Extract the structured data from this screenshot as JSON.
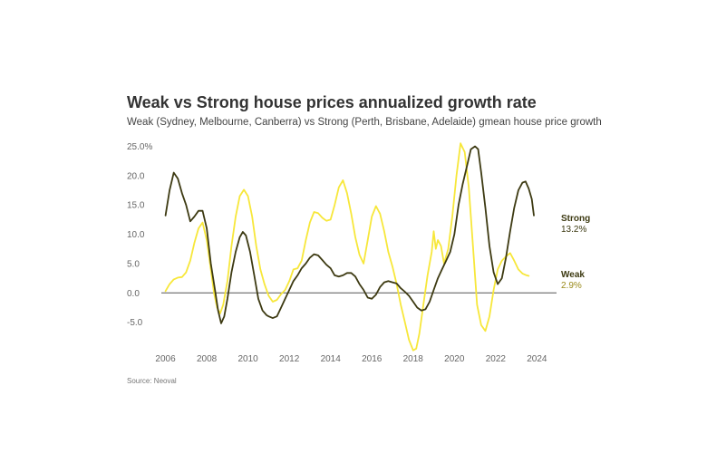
{
  "chart_data": {
    "type": "line",
    "title": "Weak vs Strong house prices annualized growth rate",
    "subtitle": "Weak (Sydney, Melbourne, Canberra) vs Strong (Perth, Brisbane, Adelaide) gmean house price growth",
    "source": "Source: Neoval",
    "xlabel": "",
    "ylabel": "",
    "xlim": [
      2005.8,
      2024.95
    ],
    "ylim": [
      -10,
      26
    ],
    "x_ticks": [
      2006,
      2008,
      2010,
      2012,
      2014,
      2016,
      2018,
      2020,
      2022,
      2024
    ],
    "x_tick_labels": [
      "2006",
      "2008",
      "2010",
      "2012",
      "2014",
      "2016",
      "2018",
      "2020",
      "2022",
      "2024"
    ],
    "y_ticks": [
      25,
      20,
      15,
      10,
      5,
      0,
      -5
    ],
    "y_tick_labels": [
      "25.0%",
      "20.0",
      "15.0",
      "10.0",
      "5.0",
      "0.0",
      "-5.0"
    ],
    "grid": false,
    "zero_line": true,
    "legend": "end-of-line labels",
    "colors": {
      "strong": "#3d3a12",
      "weak": "#f7e73a",
      "weak_label": "#9a8a1a",
      "zero_line": "#555555"
    },
    "series": [
      {
        "name": "Strong",
        "end_label": "13.2%",
        "points": [
          [
            2006.0,
            13.2
          ],
          [
            2006.2,
            17.5
          ],
          [
            2006.4,
            20.5
          ],
          [
            2006.6,
            19.5
          ],
          [
            2006.8,
            17.0
          ],
          [
            2007.0,
            15.0
          ],
          [
            2007.2,
            12.2
          ],
          [
            2007.4,
            13.0
          ],
          [
            2007.6,
            14.0
          ],
          [
            2007.8,
            14.0
          ],
          [
            2008.0,
            11.0
          ],
          [
            2008.2,
            5.0
          ],
          [
            2008.4,
            0.5
          ],
          [
            2008.55,
            -3.0
          ],
          [
            2008.7,
            -5.2
          ],
          [
            2008.85,
            -4.0
          ],
          [
            2009.0,
            -1.0
          ],
          [
            2009.2,
            3.5
          ],
          [
            2009.4,
            7.0
          ],
          [
            2009.6,
            9.5
          ],
          [
            2009.75,
            10.4
          ],
          [
            2009.9,
            9.8
          ],
          [
            2010.1,
            7.0
          ],
          [
            2010.3,
            3.0
          ],
          [
            2010.5,
            -1.0
          ],
          [
            2010.7,
            -3.0
          ],
          [
            2010.9,
            -3.8
          ],
          [
            2011.0,
            -4.0
          ],
          [
            2011.2,
            -4.3
          ],
          [
            2011.4,
            -4.0
          ],
          [
            2011.6,
            -2.5
          ],
          [
            2011.8,
            -1.0
          ],
          [
            2012.0,
            0.5
          ],
          [
            2012.2,
            2.0
          ],
          [
            2012.4,
            3.0
          ],
          [
            2012.6,
            4.2
          ],
          [
            2012.8,
            5.0
          ],
          [
            2013.0,
            6.0
          ],
          [
            2013.2,
            6.6
          ],
          [
            2013.4,
            6.4
          ],
          [
            2013.6,
            5.6
          ],
          [
            2013.8,
            4.8
          ],
          [
            2014.0,
            4.2
          ],
          [
            2014.2,
            3.0
          ],
          [
            2014.4,
            2.8
          ],
          [
            2014.6,
            3.0
          ],
          [
            2014.8,
            3.4
          ],
          [
            2015.0,
            3.4
          ],
          [
            2015.2,
            2.8
          ],
          [
            2015.4,
            1.5
          ],
          [
            2015.6,
            0.5
          ],
          [
            2015.8,
            -0.8
          ],
          [
            2016.0,
            -1.0
          ],
          [
            2016.2,
            -0.3
          ],
          [
            2016.4,
            1.0
          ],
          [
            2016.6,
            1.8
          ],
          [
            2016.8,
            2.0
          ],
          [
            2017.0,
            1.8
          ],
          [
            2017.2,
            1.6
          ],
          [
            2017.4,
            0.8
          ],
          [
            2017.6,
            0.2
          ],
          [
            2017.8,
            -0.5
          ],
          [
            2018.0,
            -1.5
          ],
          [
            2018.2,
            -2.5
          ],
          [
            2018.4,
            -3.0
          ],
          [
            2018.6,
            -2.8
          ],
          [
            2018.8,
            -1.5
          ],
          [
            2019.0,
            0.5
          ],
          [
            2019.2,
            2.5
          ],
          [
            2019.4,
            4.0
          ],
          [
            2019.6,
            5.5
          ],
          [
            2019.8,
            7.0
          ],
          [
            2020.0,
            10.0
          ],
          [
            2020.2,
            15.0
          ],
          [
            2020.4,
            18.5
          ],
          [
            2020.6,
            21.5
          ],
          [
            2020.8,
            24.5
          ],
          [
            2021.0,
            25.0
          ],
          [
            2021.15,
            24.5
          ],
          [
            2021.3,
            20.5
          ],
          [
            2021.5,
            14.5
          ],
          [
            2021.7,
            8.0
          ],
          [
            2021.9,
            3.5
          ],
          [
            2022.1,
            1.5
          ],
          [
            2022.3,
            2.5
          ],
          [
            2022.5,
            6.0
          ],
          [
            2022.7,
            10.5
          ],
          [
            2022.9,
            14.5
          ],
          [
            2023.1,
            17.5
          ],
          [
            2023.3,
            18.8
          ],
          [
            2023.45,
            19.0
          ],
          [
            2023.6,
            17.8
          ],
          [
            2023.75,
            16.0
          ],
          [
            2023.85,
            13.2
          ]
        ]
      },
      {
        "name": "Weak",
        "end_label": "2.9%",
        "points": [
          [
            2006.0,
            0.3
          ],
          [
            2006.2,
            1.5
          ],
          [
            2006.4,
            2.3
          ],
          [
            2006.6,
            2.6
          ],
          [
            2006.8,
            2.7
          ],
          [
            2007.0,
            3.5
          ],
          [
            2007.2,
            5.5
          ],
          [
            2007.4,
            8.5
          ],
          [
            2007.6,
            11.0
          ],
          [
            2007.8,
            12.0
          ],
          [
            2008.0,
            9.0
          ],
          [
            2008.2,
            4.0
          ],
          [
            2008.35,
            0.0
          ],
          [
            2008.5,
            -2.5
          ],
          [
            2008.65,
            -3.5
          ],
          [
            2008.8,
            -2.0
          ],
          [
            2009.0,
            2.0
          ],
          [
            2009.2,
            8.0
          ],
          [
            2009.4,
            13.0
          ],
          [
            2009.6,
            16.5
          ],
          [
            2009.8,
            17.6
          ],
          [
            2010.0,
            16.5
          ],
          [
            2010.2,
            13.0
          ],
          [
            2010.4,
            8.0
          ],
          [
            2010.6,
            4.0
          ],
          [
            2010.8,
            1.5
          ],
          [
            2011.0,
            -0.5
          ],
          [
            2011.2,
            -1.5
          ],
          [
            2011.4,
            -1.2
          ],
          [
            2011.6,
            -0.2
          ],
          [
            2011.8,
            0.5
          ],
          [
            2012.0,
            2.0
          ],
          [
            2012.2,
            4.0
          ],
          [
            2012.4,
            4.2
          ],
          [
            2012.6,
            5.5
          ],
          [
            2012.8,
            9.0
          ],
          [
            2013.0,
            12.0
          ],
          [
            2013.2,
            13.8
          ],
          [
            2013.4,
            13.6
          ],
          [
            2013.6,
            12.8
          ],
          [
            2013.8,
            12.3
          ],
          [
            2014.0,
            12.5
          ],
          [
            2014.2,
            15.0
          ],
          [
            2014.4,
            18.0
          ],
          [
            2014.6,
            19.2
          ],
          [
            2014.8,
            17.0
          ],
          [
            2015.0,
            13.5
          ],
          [
            2015.2,
            9.5
          ],
          [
            2015.4,
            6.5
          ],
          [
            2015.6,
            5.0
          ],
          [
            2015.8,
            9.0
          ],
          [
            2016.0,
            13.0
          ],
          [
            2016.2,
            14.8
          ],
          [
            2016.4,
            13.5
          ],
          [
            2016.6,
            10.5
          ],
          [
            2016.8,
            7.0
          ],
          [
            2017.0,
            4.5
          ],
          [
            2017.2,
            1.5
          ],
          [
            2017.4,
            -2.0
          ],
          [
            2017.6,
            -5.0
          ],
          [
            2017.8,
            -8.0
          ],
          [
            2018.0,
            -9.8
          ],
          [
            2018.15,
            -9.5
          ],
          [
            2018.3,
            -7.0
          ],
          [
            2018.5,
            -2.0
          ],
          [
            2018.7,
            3.0
          ],
          [
            2018.9,
            7.0
          ],
          [
            2019.0,
            10.5
          ],
          [
            2019.1,
            7.5
          ],
          [
            2019.2,
            9.0
          ],
          [
            2019.35,
            8.0
          ],
          [
            2019.5,
            5.0
          ],
          [
            2019.7,
            7.5
          ],
          [
            2019.9,
            13.0
          ],
          [
            2020.1,
            20.0
          ],
          [
            2020.3,
            25.5
          ],
          [
            2020.5,
            24.0
          ],
          [
            2020.7,
            18.0
          ],
          [
            2020.9,
            8.0
          ],
          [
            2021.1,
            -2.0
          ],
          [
            2021.3,
            -5.5
          ],
          [
            2021.5,
            -6.5
          ],
          [
            2021.7,
            -4.0
          ],
          [
            2021.9,
            0.5
          ],
          [
            2022.1,
            4.0
          ],
          [
            2022.3,
            5.5
          ],
          [
            2022.5,
            6.2
          ],
          [
            2022.7,
            6.8
          ],
          [
            2022.9,
            5.5
          ],
          [
            2023.1,
            4.0
          ],
          [
            2023.3,
            3.3
          ],
          [
            2023.5,
            3.0
          ],
          [
            2023.6,
            2.9
          ]
        ]
      }
    ]
  }
}
